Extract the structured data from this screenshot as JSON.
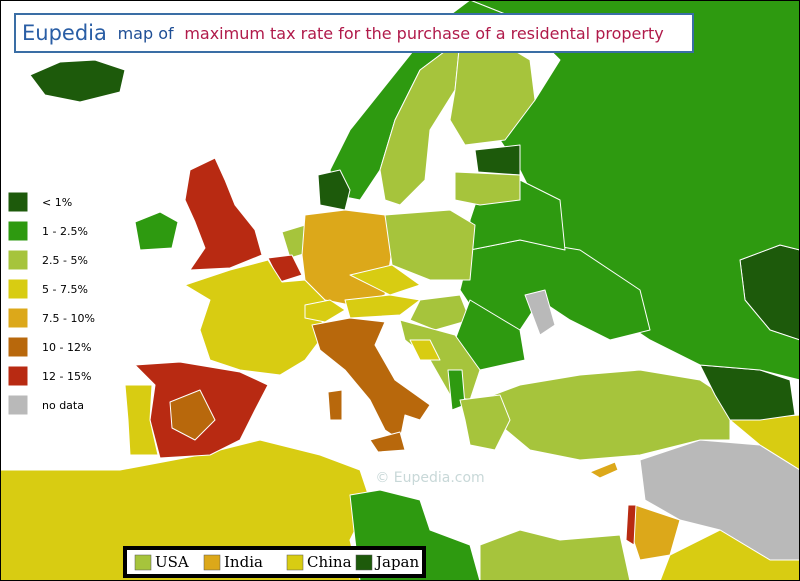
{
  "header": {
    "brand": "Eupedia",
    "connector": "map of",
    "title": "maximum tax rate for the purchase of a residental property"
  },
  "legend": {
    "items": [
      {
        "label": "< 1%",
        "color": "#1d5a0b"
      },
      {
        "label": "1 - 2.5%",
        "color": "#2e9a10"
      },
      {
        "label": "2.5 - 5%",
        "color": "#a6c43c"
      },
      {
        "label": "5 - 7.5%",
        "color": "#d8cc12"
      },
      {
        "label": "7.5 - 10%",
        "color": "#dca81a"
      },
      {
        "label": "10 - 12%",
        "color": "#b8680c"
      },
      {
        "label": "12 - 15%",
        "color": "#b82a12"
      },
      {
        "label": "no data",
        "color": "#b9b9b9"
      }
    ]
  },
  "comparison_legend": {
    "items": [
      {
        "label": "USA",
        "color": "#a6c43c"
      },
      {
        "label": "India",
        "color": "#dca81a"
      },
      {
        "label": "China",
        "color": "#d8cc12"
      },
      {
        "label": "Japan",
        "color": "#1d5a0b"
      }
    ]
  },
  "watermark": "© Eupedia.com"
}
